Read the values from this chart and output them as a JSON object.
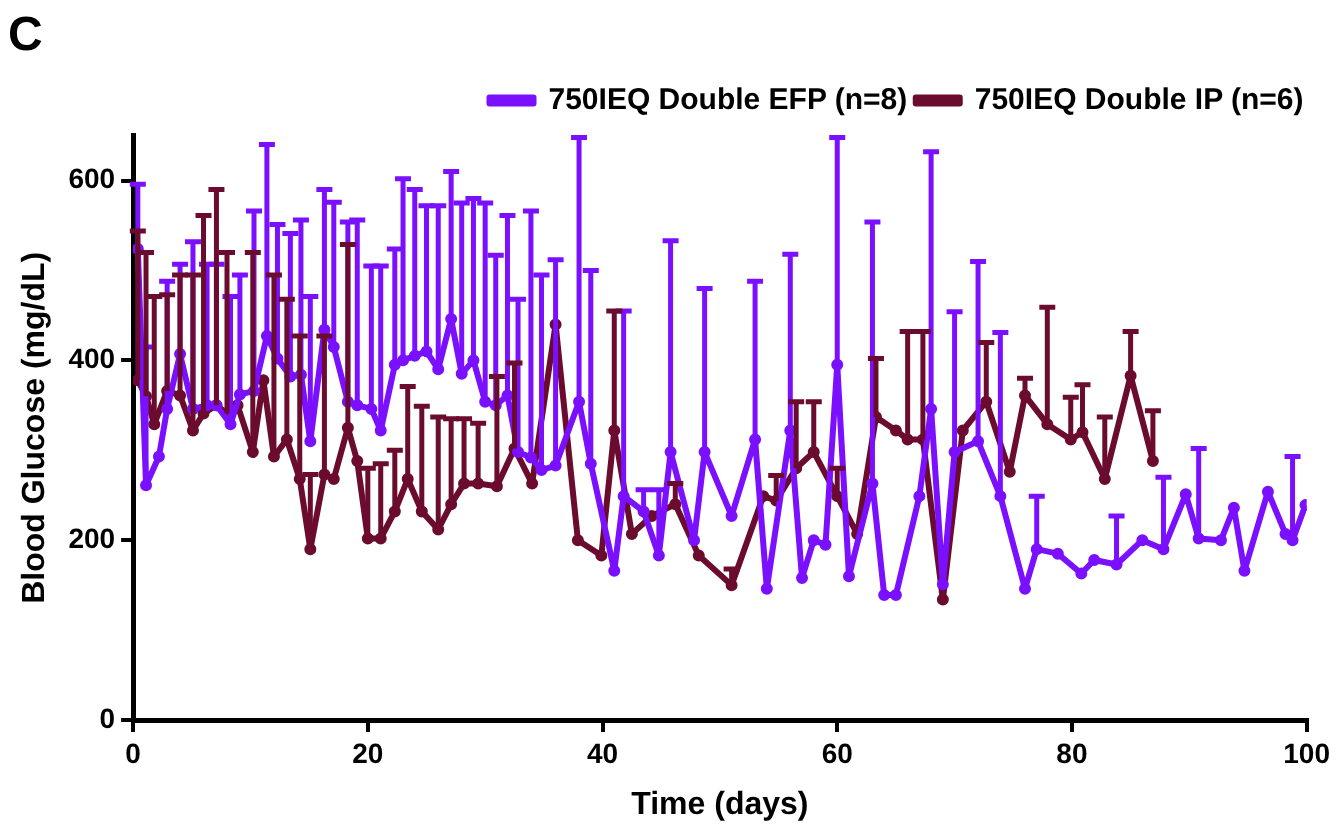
{
  "chart_data": {
    "type": "line",
    "title": "C",
    "xlabel": "Time (days)",
    "ylabel": "Blood Glucose (mg/dL)",
    "xlim": [
      0,
      100
    ],
    "xticks": [
      0,
      20,
      40,
      60,
      80,
      100
    ],
    "ylim": [
      0,
      650
    ],
    "yticks": [
      0,
      200,
      400,
      600
    ],
    "grid": false,
    "legend": "top right",
    "marker": "circle",
    "line_style": "solid",
    "series": [
      {
        "name": "750IEQ Double EFP (n=8)",
        "color": "#7a10ff",
        "x": [
          0.4,
          1.1,
          2.2,
          2.9,
          4,
          5.1,
          6.3,
          7.1,
          8.3,
          9.1,
          10.3,
          11.4,
          12.3,
          13.4,
          14.3,
          15.1,
          16.3,
          17.1,
          18.3,
          19.1,
          20.3,
          21.1,
          22.3,
          23,
          24,
          25,
          26,
          27.1,
          28,
          29,
          30,
          30.9,
          31.9,
          32.8,
          33.9,
          34.8,
          36,
          38,
          39,
          41,
          41.8,
          43.5,
          44.8,
          45.8,
          47.8,
          48.7,
          51,
          53,
          54,
          56,
          57,
          58,
          59,
          60,
          61,
          63,
          64,
          65,
          67,
          68,
          69,
          70,
          72,
          73.9,
          76,
          77,
          78.8,
          80.8,
          81.9,
          83.8,
          86,
          87.8,
          89.7,
          90.8,
          92.7,
          93.8,
          94.7,
          96.7,
          98.2,
          98.8,
          99.9
        ],
        "values": [
          524,
          261,
          293,
          346,
          407,
          346,
          350,
          350,
          329,
          362,
          366,
          427,
          402,
          382,
          384,
          310,
          434,
          415,
          354,
          350,
          346,
          322,
          395,
          400,
          405,
          410,
          390,
          446,
          385,
          400,
          354,
          350,
          361,
          298,
          292,
          278,
          283,
          354,
          285,
          166,
          249,
          232,
          183,
          298,
          200,
          298,
          227,
          312,
          146,
          322,
          158,
          200,
          195,
          395,
          160,
          263,
          139,
          139,
          249,
          346,
          151,
          298,
          310,
          249,
          146,
          190,
          185,
          163,
          178,
          173,
          200,
          190,
          251,
          202,
          200,
          236,
          166,
          254,
          207,
          200,
          239
        ],
        "errors": [
          [
            524,
            596
          ],
          [
            261,
            415
          ],
          null,
          [
            346,
            488
          ],
          [
            407,
            507
          ],
          [
            346,
            532
          ],
          [
            350,
            507
          ],
          [
            350,
            507
          ],
          [
            329,
            471
          ],
          [
            362,
            495
          ],
          [
            366,
            566
          ],
          [
            427,
            640
          ],
          [
            402,
            551
          ],
          [
            382,
            541
          ],
          [
            384,
            556
          ],
          [
            310,
            471
          ],
          [
            434,
            590
          ],
          [
            415,
            576
          ],
          [
            354,
            554
          ],
          [
            350,
            556
          ],
          [
            346,
            505
          ],
          [
            322,
            505
          ],
          [
            395,
            524
          ],
          [
            400,
            602
          ],
          [
            405,
            590
          ],
          [
            410,
            572
          ],
          [
            390,
            572
          ],
          [
            446,
            610
          ],
          [
            385,
            575
          ],
          [
            400,
            580
          ],
          [
            354,
            575
          ],
          [
            350,
            517
          ],
          [
            361,
            561
          ],
          [
            298,
            468
          ],
          [
            292,
            566
          ],
          [
            278,
            495
          ],
          [
            283,
            512
          ],
          [
            354,
            648
          ],
          [
            285,
            500
          ],
          null,
          [
            249,
            455
          ],
          [
            232,
            256
          ],
          [
            183,
            256
          ],
          [
            298,
            533
          ],
          null,
          [
            298,
            480
          ],
          null,
          [
            312,
            488
          ],
          null,
          [
            322,
            518
          ],
          null,
          null,
          null,
          [
            395,
            648
          ],
          null,
          [
            263,
            554
          ],
          null,
          null,
          null,
          [
            346,
            632
          ],
          null,
          [
            298,
            454
          ],
          [
            310,
            510
          ],
          [
            249,
            431
          ],
          null,
          [
            190,
            249
          ],
          null,
          null,
          null,
          [
            173,
            227
          ],
          null,
          [
            190,
            270
          ],
          null,
          [
            202,
            302
          ],
          null,
          null,
          null,
          null,
          null,
          [
            200,
            293
          ],
          null
        ]
      },
      {
        "name": "750IEQ Double IP (n=6)",
        "color": "#6b0c2e",
        "x": [
          0.4,
          1.1,
          1.8,
          2.9,
          4,
          5.1,
          6,
          7.1,
          8,
          8.9,
          10.2,
          11.1,
          12,
          13.1,
          14.2,
          15.1,
          16.3,
          17.1,
          18.3,
          19.1,
          20,
          21.1,
          22.3,
          23.4,
          24.6,
          26,
          27.1,
          28.2,
          29.4,
          31,
          32.5,
          34,
          36,
          37.9,
          39.9,
          41,
          42.5,
          44.2,
          46.2,
          48.2,
          51,
          53.7,
          54.8,
          56.5,
          58,
          60,
          61.7,
          63.3,
          65,
          66,
          67.3,
          69,
          70.7,
          72.7,
          74.7,
          76,
          77.9,
          79.9,
          80.9,
          82.8,
          85,
          86.9
        ],
        "values": [
          378,
          360,
          329,
          366,
          361,
          322,
          341,
          350,
          341,
          350,
          298,
          378,
          293,
          312,
          268,
          190,
          273,
          268,
          325,
          288,
          202,
          202,
          232,
          268,
          232,
          212,
          240,
          263,
          263,
          260,
          302,
          263,
          440,
          200,
          183,
          322,
          207,
          227,
          240,
          183,
          150,
          249,
          244,
          280,
          298,
          249,
          207,
          337,
          322,
          312,
          312,
          134,
          322,
          354,
          276,
          361,
          329,
          312,
          320,
          268,
          383,
          288
        ],
        "errors": [
          [
            378,
            544
          ],
          [
            360,
            520
          ],
          [
            329,
            471
          ],
          [
            366,
            473
          ],
          [
            361,
            495
          ],
          [
            322,
            495
          ],
          [
            341,
            561
          ],
          [
            350,
            590
          ],
          [
            341,
            520
          ],
          null,
          [
            298,
            520
          ],
          null,
          [
            293,
            495
          ],
          [
            312,
            468
          ],
          [
            268,
            427
          ],
          [
            190,
            273
          ],
          [
            273,
            427
          ],
          null,
          [
            325,
            529
          ],
          null,
          [
            202,
            280
          ],
          [
            202,
            285
          ],
          [
            232,
            300
          ],
          [
            268,
            371
          ],
          [
            232,
            349
          ],
          [
            212,
            337
          ],
          [
            240,
            335
          ],
          [
            263,
            335
          ],
          [
            263,
            330
          ],
          [
            260,
            382
          ],
          [
            302,
            397
          ],
          null,
          null,
          null,
          null,
          [
            322,
            455
          ],
          null,
          null,
          [
            240,
            263
          ],
          null,
          [
            150,
            168
          ],
          null,
          [
            244,
            272
          ],
          [
            280,
            354
          ],
          [
            298,
            354
          ],
          [
            249,
            280
          ],
          null,
          [
            337,
            402
          ],
          null,
          [
            312,
            432
          ],
          [
            312,
            432
          ],
          null,
          null,
          [
            354,
            420
          ],
          null,
          [
            361,
            380
          ],
          [
            329,
            459
          ],
          [
            312,
            359
          ],
          [
            320,
            373
          ],
          [
            268,
            337
          ],
          [
            383,
            432
          ],
          [
            288,
            344
          ]
        ]
      }
    ]
  }
}
